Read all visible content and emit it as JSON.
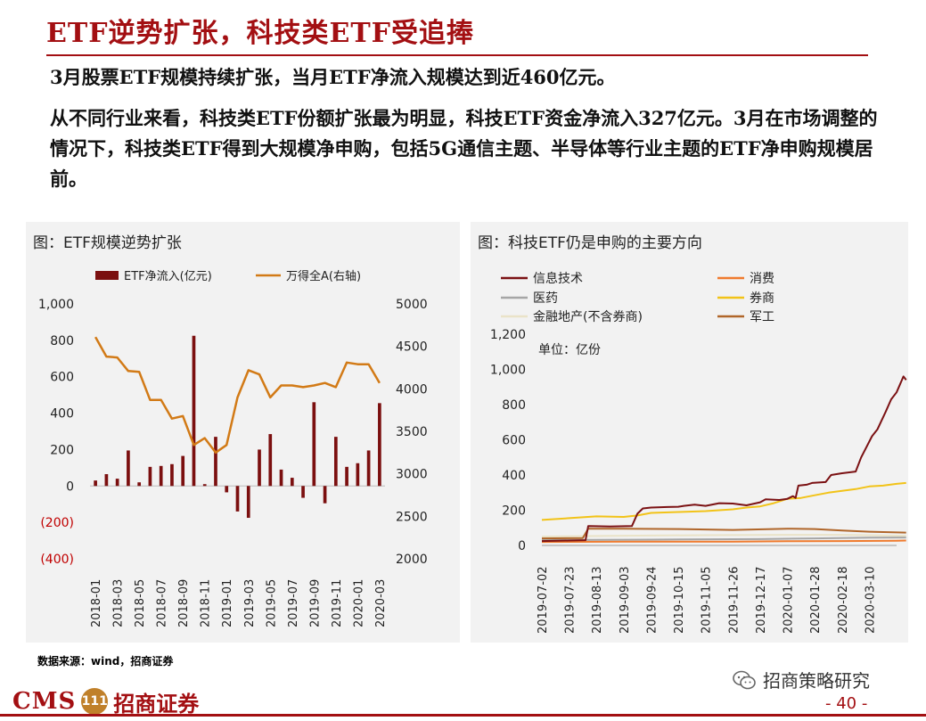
{
  "page": {
    "title": "ETF逆势扩张，科技类ETF受追捧",
    "para1": "3月股票ETF规模持续扩张，当月ETF净流入规模达到近460亿元。",
    "para2": "从不同行业来看，科技类ETF份额扩张最为明显，科技ETF资金净流入327亿元。3月在市场调整的情况下，科技类ETF得到大规模净申购，包括5G通信主题、半导体等行业主题的ETF净申购规模居前。",
    "source": "数据来源：wind，招商证券",
    "page_number": "- 40 -",
    "wechat_label": "招商策略研究",
    "logo": {
      "latin": "CMS",
      "cn": "招商证券",
      "badge": "111"
    }
  },
  "colors": {
    "brand_red": "#a30f12",
    "bar": "#7b0f0f",
    "line_orange": "#d27a16"
  },
  "icons": {
    "wechat": "wechat-icon"
  },
  "chart_data": [
    {
      "type": "bar+line",
      "title": "图：ETF规模逆势扩张",
      "x": [
        "2018-01",
        "2018-02",
        "2018-03",
        "2018-04",
        "2018-05",
        "2018-06",
        "2018-07",
        "2018-08",
        "2018-09",
        "2018-10",
        "2018-11",
        "2018-12",
        "2019-01",
        "2019-02",
        "2019-03",
        "2019-04",
        "2019-05",
        "2019-06",
        "2019-07",
        "2019-08",
        "2019-09",
        "2019-10",
        "2019-11",
        "2019-12",
        "2020-01",
        "2020-02",
        "2020-03"
      ],
      "xticks": [
        "2018-01",
        "2018-03",
        "2018-05",
        "2018-07",
        "2018-09",
        "2018-11",
        "2019-01",
        "2019-03",
        "2019-05",
        "2019-07",
        "2019-09",
        "2019-11",
        "2020-01",
        "2020-03"
      ],
      "series": [
        {
          "name": "ETF净流入(亿元)",
          "axis": "left",
          "values": [
            30,
            65,
            40,
            195,
            20,
            105,
            110,
            120,
            165,
            825,
            10,
            270,
            -35,
            -140,
            -175,
            200,
            285,
            90,
            45,
            -65,
            460,
            -95,
            270,
            105,
            125,
            195,
            455
          ]
        },
        {
          "name": "万得全A(右轴)",
          "axis": "right",
          "values": [
            4610,
            4380,
            4370,
            4210,
            4200,
            3870,
            3870,
            3650,
            3680,
            3340,
            3420,
            3250,
            3340,
            3900,
            4220,
            4170,
            3900,
            4040,
            4040,
            4020,
            4040,
            4070,
            4020,
            4310,
            4290,
            4290,
            4070
          ]
        }
      ],
      "yleft": {
        "ticks": [
          1000,
          800,
          600,
          400,
          200,
          0,
          -200,
          -400
        ],
        "labels": [
          "1,000",
          "800",
          "600",
          "400",
          "200",
          "0",
          "(200)",
          "(400)"
        ],
        "range": [
          -400,
          1000
        ]
      },
      "yright": {
        "ticks": [
          5000,
          4500,
          4000,
          3500,
          3000,
          2500,
          2000
        ],
        "labels": [
          "5000",
          "4500",
          "4000",
          "3500",
          "3000",
          "2500",
          "2000"
        ],
        "range": [
          2000,
          5000
        ]
      },
      "legend": "top"
    },
    {
      "type": "line",
      "title": "图：科技ETF仍是申购的主要方向",
      "unit_label": "单位：亿份",
      "xticks": [
        "2019-07-02",
        "2019-07-23",
        "2019-08-13",
        "2019-09-03",
        "2019-09-24",
        "2019-10-15",
        "2019-11-05",
        "2019-11-26",
        "2019-12-17",
        "2020-01-07",
        "2020-01-28",
        "2020-02-18",
        "2020-03-10"
      ],
      "x_index_max": 13,
      "yticks": [
        1200,
        1000,
        800,
        600,
        400,
        200,
        0
      ],
      "ylabels": [
        "1,200",
        "1,000",
        "800",
        "600",
        "400",
        "200",
        "0"
      ],
      "ylim": [
        0,
        1200
      ],
      "legend": "top",
      "series": [
        {
          "name": "信息技术",
          "color": "#7b1113",
          "points": [
            [
              0,
              25
            ],
            [
              1,
              28
            ],
            [
              1.6,
              30
            ],
            [
              1.7,
              110
            ],
            [
              2.5,
              108
            ],
            [
              3.3,
              110
            ],
            [
              3.5,
              180
            ],
            [
              3.7,
              210
            ],
            [
              4.0,
              215
            ],
            [
              4.6,
              218
            ],
            [
              5.0,
              220
            ],
            [
              5.2,
              225
            ],
            [
              5.6,
              232
            ],
            [
              6.0,
              225
            ],
            [
              6.5,
              240
            ],
            [
              7.0,
              238
            ],
            [
              7.5,
              228
            ],
            [
              8.0,
              245
            ],
            [
              8.2,
              262
            ],
            [
              8.7,
              258
            ],
            [
              9.0,
              265
            ],
            [
              9.2,
              280
            ],
            [
              9.3,
              270
            ],
            [
              9.4,
              340
            ],
            [
              9.7,
              345
            ],
            [
              9.9,
              355
            ],
            [
              10.4,
              360
            ],
            [
              10.6,
              400
            ],
            [
              11.0,
              410
            ],
            [
              11.5,
              420
            ],
            [
              11.7,
              500
            ],
            [
              11.9,
              560
            ],
            [
              12.1,
              620
            ],
            [
              12.3,
              660
            ],
            [
              12.6,
              760
            ],
            [
              12.8,
              830
            ],
            [
              13.0,
              870
            ],
            [
              13.25,
              960
            ],
            [
              13.35,
              940
            ]
          ]
        },
        {
          "name": "消费",
          "color": "#f07b2e",
          "points": [
            [
              0,
              20
            ],
            [
              3,
              22
            ],
            [
              5,
              22
            ],
            [
              7,
              22
            ],
            [
              9,
              24
            ],
            [
              11,
              25
            ],
            [
              13,
              27
            ],
            [
              13.35,
              28
            ]
          ]
        },
        {
          "name": "医药",
          "color": "#a6a6a6",
          "points": [
            [
              0,
              30
            ],
            [
              2,
              32
            ],
            [
              4,
              33
            ],
            [
              6,
              35
            ],
            [
              8,
              36
            ],
            [
              10,
              40
            ],
            [
              12,
              44
            ],
            [
              13.35,
              45
            ]
          ]
        },
        {
          "name": "券商",
          "color": "#f2c318",
          "points": [
            [
              0,
              145
            ],
            [
              1,
              155
            ],
            [
              2,
              165
            ],
            [
              3,
              162
            ],
            [
              3.5,
              170
            ],
            [
              4,
              185
            ],
            [
              5,
              190
            ],
            [
              6,
              195
            ],
            [
              7,
              205
            ],
            [
              7.5,
              215
            ],
            [
              8,
              222
            ],
            [
              8.5,
              240
            ],
            [
              9,
              265
            ],
            [
              9.5,
              270
            ],
            [
              10,
              285
            ],
            [
              10.5,
              300
            ],
            [
              11,
              310
            ],
            [
              11.5,
              320
            ],
            [
              12,
              335
            ],
            [
              12.5,
              340
            ],
            [
              13,
              350
            ],
            [
              13.35,
              355
            ]
          ]
        },
        {
          "name": "金融地产(不含券商)",
          "color": "#eae3c8",
          "points": [
            [
              0,
              50
            ],
            [
              3,
              55
            ],
            [
              6,
              58
            ],
            [
              9,
              60
            ],
            [
              11,
              60
            ],
            [
              13.35,
              55
            ]
          ]
        },
        {
          "name": "军工",
          "color": "#b0662a",
          "points": [
            [
              0,
              40
            ],
            [
              1.5,
              42
            ],
            [
              1.7,
              95
            ],
            [
              3,
              95
            ],
            [
              5,
              93
            ],
            [
              7,
              88
            ],
            [
              9,
              95
            ],
            [
              10,
              93
            ],
            [
              11,
              85
            ],
            [
              12,
              78
            ],
            [
              13.35,
              73
            ]
          ]
        }
      ]
    }
  ]
}
